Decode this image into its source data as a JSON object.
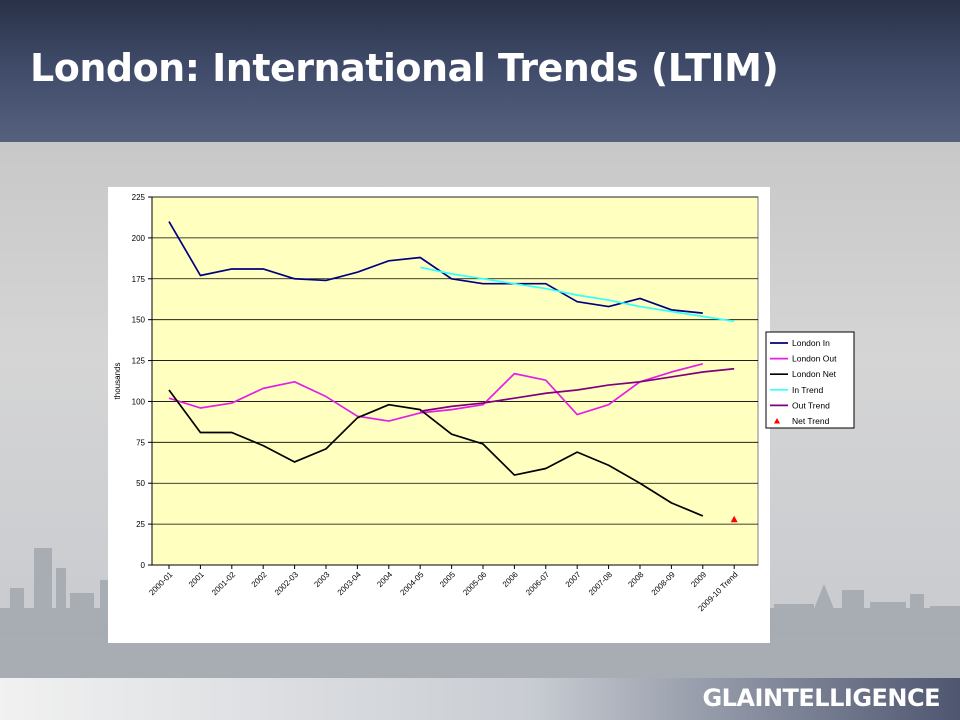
{
  "slide": {
    "title": "London: International Trends (LTIM)",
    "brand_prefix": "GLA",
    "brand_suffix": "INTELLIGENCE"
  },
  "colors": {
    "plot_bg": "#ffffc0",
    "london_in": "#000080",
    "london_out": "#e61ee6",
    "london_net": "#000000",
    "in_trend": "#33ffff",
    "out_trend": "#800080",
    "net_trend": "#ff0000"
  },
  "chart_data": {
    "type": "line",
    "title": "",
    "xlabel": "",
    "ylabel": "thousands",
    "ylim": [
      0,
      225
    ],
    "yticks": [
      0,
      25,
      50,
      75,
      100,
      125,
      150,
      175,
      200,
      225
    ],
    "grid": true,
    "legend_position": "right",
    "categories": [
      "2000-01",
      "2001",
      "2001-02",
      "2002",
      "2002-03",
      "2003",
      "2003-04",
      "2004",
      "2004-05",
      "2005",
      "2005-06",
      "2006",
      "2006-07",
      "2007",
      "2007-08",
      "2008",
      "2008-09",
      "2009",
      "2009-10 Trend"
    ],
    "series": [
      {
        "name": "London In",
        "color": "#000080",
        "marker": "none",
        "values": [
          210,
          177,
          181,
          181,
          175,
          174,
          179,
          186,
          188,
          175,
          172,
          172,
          172,
          161,
          158,
          163,
          156,
          154,
          null
        ]
      },
      {
        "name": "London Out",
        "color": "#e61ee6",
        "marker": "none",
        "values": [
          102,
          96,
          99,
          108,
          112,
          103,
          91,
          88,
          93,
          95,
          98,
          117,
          113,
          92,
          98,
          112,
          118,
          123,
          null
        ]
      },
      {
        "name": "London Net",
        "color": "#000000",
        "marker": "none",
        "values": [
          107,
          81,
          81,
          73,
          63,
          71,
          90,
          98,
          95,
          80,
          74,
          55,
          59,
          69,
          61,
          50,
          38,
          30,
          null
        ]
      },
      {
        "name": "In Trend",
        "color": "#33ffff",
        "marker": "none",
        "values": [
          null,
          null,
          null,
          null,
          null,
          null,
          null,
          null,
          182,
          178,
          175,
          172,
          169,
          165,
          162,
          158,
          155,
          152,
          149
        ]
      },
      {
        "name": "Out Trend",
        "color": "#800080",
        "marker": "none",
        "values": [
          null,
          null,
          null,
          null,
          null,
          null,
          null,
          null,
          94,
          97,
          99,
          102,
          105,
          107,
          110,
          112,
          115,
          118,
          120
        ]
      },
      {
        "name": "Net Trend",
        "color": "#ff0000",
        "marker": "triangle",
        "values": [
          null,
          null,
          null,
          null,
          null,
          null,
          null,
          null,
          null,
          null,
          null,
          null,
          null,
          null,
          null,
          null,
          null,
          null,
          28
        ]
      }
    ]
  }
}
